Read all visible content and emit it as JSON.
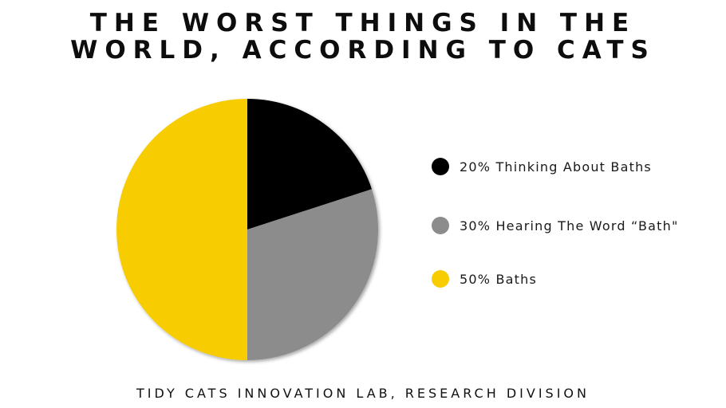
{
  "title": {
    "line1": "THE WORST THINGS IN THE",
    "line2": "WORLD, ACCORDING TO CATS"
  },
  "footer": "TIDY CATS INNOVATION LAB, RESEARCH DIVISION",
  "chart_data": {
    "type": "pie",
    "title": "THE WORST THINGS IN THE WORLD, ACCORDING TO CATS",
    "legend_position": "right",
    "slices": [
      {
        "label": "20% Thinking About Baths",
        "category": "Thinking About Baths",
        "value": 20,
        "color": "#000000"
      },
      {
        "label": "30% Hearing The Word “Bath\"",
        "category": "Hearing The Word “Bath\"",
        "value": 30,
        "color": "#8c8c8c"
      },
      {
        "label": "50% Baths",
        "category": "Baths",
        "value": 50,
        "color": "#f7cc00"
      }
    ]
  }
}
